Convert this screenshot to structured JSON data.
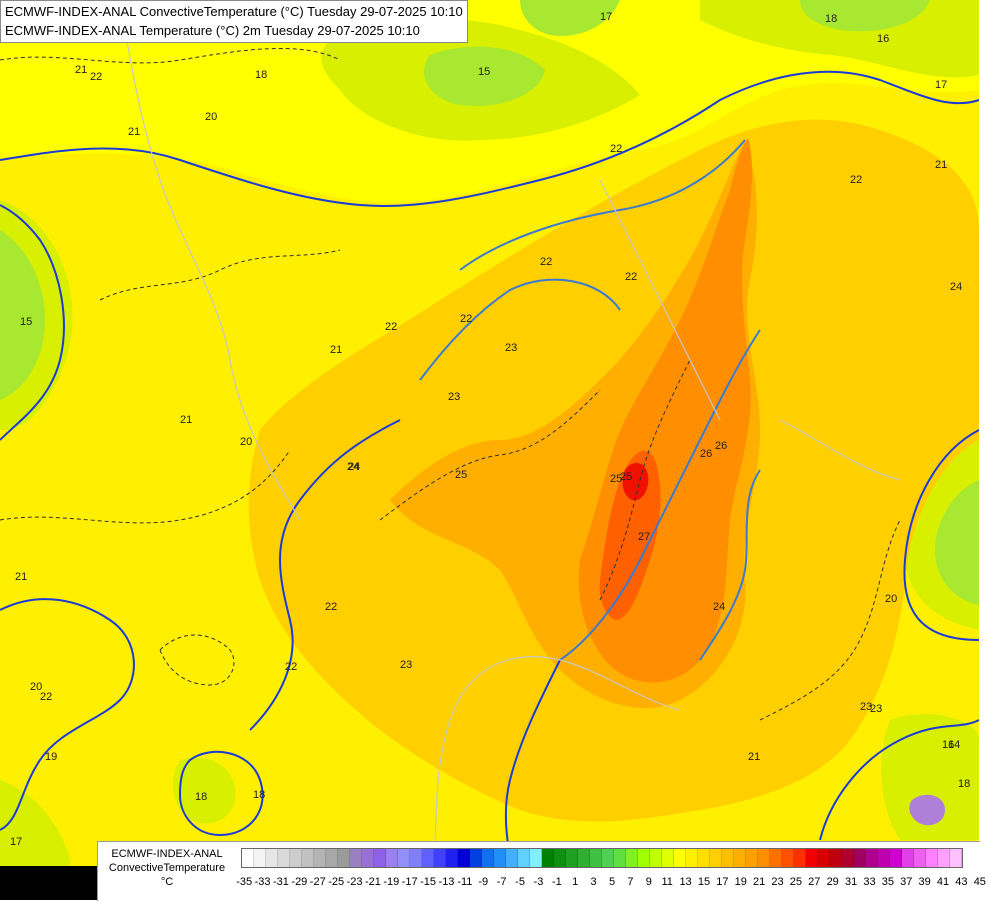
{
  "titles": {
    "line1": "ECMWF-INDEX-ANAL ConvectiveTemperature (°C) Tuesday 29-07-2025 10:10",
    "line2": "ECMWF-INDEX-ANAL Temperature (°C) 2m Tuesday 29-07-2025 10:10"
  },
  "legend": {
    "title_line1": "ECMWF-INDEX-ANAL",
    "title_line2": "ConvectiveTemperature",
    "title_line3": "°C",
    "colors": [
      "#ffffff",
      "#f3f3f3",
      "#e6e6e6",
      "#dadada",
      "#cdcdcd",
      "#c1c1c1",
      "#b4b4b4",
      "#a8a8a8",
      "#9b9b9b",
      "#9a80c0",
      "#9a70d8",
      "#8f60e8",
      "#9b80f0",
      "#9090f8",
      "#8080ff",
      "#6060ff",
      "#4040ff",
      "#2020f0",
      "#0000d8",
      "#0040e0",
      "#1070f0",
      "#2090f8",
      "#40b0ff",
      "#60d0ff",
      "#80f0ff",
      "#008000",
      "#109010",
      "#20a020",
      "#30b030",
      "#40c040",
      "#50d050",
      "#60e040",
      "#80f020",
      "#a0ff00",
      "#c0ff00",
      "#e0ff00",
      "#ffff00",
      "#ffef00",
      "#ffdf00",
      "#ffcf00",
      "#ffbf00",
      "#ffaf00",
      "#ff9f00",
      "#ff8f00",
      "#ff7000",
      "#ff5000",
      "#ff3000",
      "#f00000",
      "#d80000",
      "#c00010",
      "#b00030",
      "#a00060",
      "#b00090",
      "#c000b0",
      "#d000d0",
      "#e040e8",
      "#f060f0",
      "#ff80ff",
      "#ffa0ff",
      "#ffc0ff"
    ],
    "tick_labels": [
      "-35",
      "-33",
      "-31",
      "-29",
      "-27",
      "-25",
      "-23",
      "-21",
      "-19",
      "-17",
      "-15",
      "-13",
      "-11",
      "-9",
      "-7",
      "-5",
      "-3",
      "-1",
      "1",
      "3",
      "5",
      "7",
      "9",
      "11",
      "13",
      "15",
      "17",
      "19",
      "21",
      "23",
      "25",
      "27",
      "29",
      "31",
      "33",
      "35",
      "37",
      "39",
      "41",
      "43",
      "45"
    ]
  },
  "map": {
    "colors": {
      "yellow": "#ffef00",
      "light_yellow": "#ffff00",
      "green_yellow": "#d8f000",
      "green": "#a8e830",
      "gold": "#ffcf00",
      "orange": "#ffaf00",
      "dark_orange": "#ff8f00",
      "red_orange": "#ff6000",
      "red": "#f01000",
      "blue_isotherm": "#1a3bd8",
      "steelblue_isotherm": "#3a7ad0",
      "grey_border": "#c8c8c8"
    },
    "contour_labels": [
      "21",
      "22",
      "21",
      "20",
      "18",
      "15",
      "17",
      "18",
      "16",
      "17",
      "22",
      "21",
      "22",
      "22",
      "22",
      "21",
      "22",
      "23",
      "22",
      "24",
      "25",
      "23",
      "24",
      "25",
      "26",
      "25",
      "26",
      "27",
      "24",
      "20",
      "24",
      "22",
      "21",
      "20",
      "22",
      "23",
      "23",
      "21",
      "19",
      "18",
      "18",
      "17",
      "18",
      "16",
      "14",
      "15",
      "20",
      "21",
      "22",
      "23"
    ]
  }
}
